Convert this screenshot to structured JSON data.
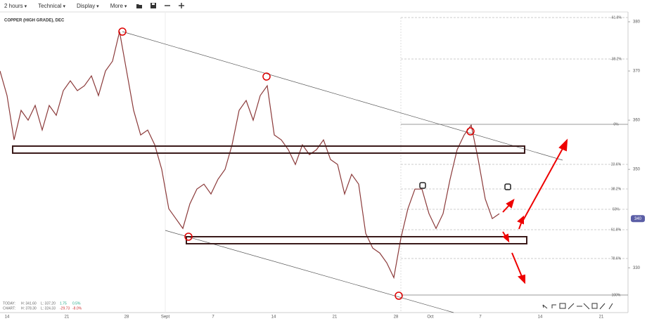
{
  "toolbar": {
    "items": [
      "2 hours",
      "Technical",
      "Display",
      "More"
    ]
  },
  "chart_data": {
    "type": "line",
    "title": "COPPER (HIGH GRADE), DEC",
    "values": [
      370,
      365,
      356,
      362,
      360,
      363,
      358,
      363,
      361,
      366,
      368,
      366,
      367,
      369,
      365,
      370,
      372,
      378,
      370,
      362,
      357,
      358,
      355,
      350,
      342,
      340,
      338,
      343,
      346,
      347,
      345,
      348,
      350,
      355,
      362,
      364,
      360,
      365,
      367,
      357,
      356,
      354,
      351,
      355,
      353,
      354,
      356,
      352,
      351,
      345,
      349,
      347,
      337,
      334,
      333,
      331,
      328,
      336,
      342,
      346,
      346,
      341,
      338,
      341,
      348,
      354,
      357,
      359,
      352,
      344,
      340,
      341
    ],
    "color": "#8b3a3a",
    "ylim": [
      320.9,
      382
    ],
    "yticks": [
      330,
      350,
      360,
      370,
      380
    ],
    "last_price": 340,
    "x_labels": [
      "14",
      "21",
      "28",
      "Sept",
      "7",
      "14",
      "21",
      "28",
      "Oct",
      "7",
      "14",
      "21"
    ],
    "fib_levels": [
      "-61.8%",
      "-38.2%",
      "0%",
      "23.6%",
      "38.2%",
      "50%",
      "61.8%",
      "78.6%",
      "100%"
    ],
    "info": [
      [
        "TODAY:",
        "H: 341.60",
        "L: 337.20",
        "1.75",
        "0.5%"
      ],
      [
        "CHART:",
        "H: 378.30",
        "L: 324.33",
        "-29.73",
        "-8.0%"
      ]
    ]
  }
}
